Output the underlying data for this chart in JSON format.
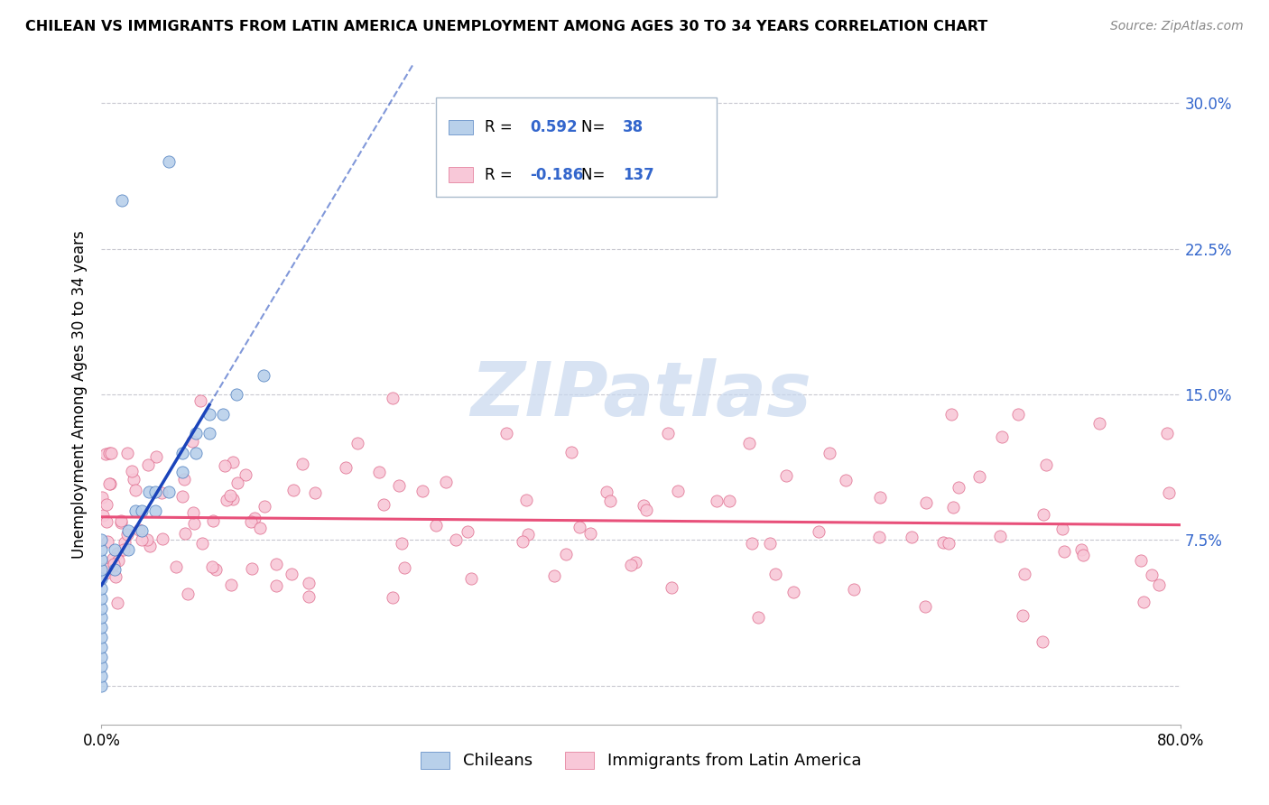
{
  "title": "CHILEAN VS IMMIGRANTS FROM LATIN AMERICA UNEMPLOYMENT AMONG AGES 30 TO 34 YEARS CORRELATION CHART",
  "source": "Source: ZipAtlas.com",
  "ylabel": "Unemployment Among Ages 30 to 34 years",
  "xlim": [
    0.0,
    0.8
  ],
  "ylim": [
    -0.02,
    0.32
  ],
  "yticks": [
    0.0,
    0.075,
    0.15,
    0.225,
    0.3
  ],
  "ytick_labels": [
    "",
    "7.5%",
    "15.0%",
    "22.5%",
    "30.0%"
  ],
  "xtick_labels": [
    "0.0%",
    "80.0%"
  ],
  "grid_color": "#c8c8d0",
  "background_color": "#ffffff",
  "chilean_fill_color": "#b8d0ea",
  "chilean_edge_color": "#5080c0",
  "immigrant_fill_color": "#f8c8d8",
  "immigrant_edge_color": "#e07090",
  "chilean_line_color": "#1a44bb",
  "immigrant_line_color": "#e8507a",
  "R_chilean": 0.592,
  "N_chilean": 38,
  "R_immigrant": -0.186,
  "N_immigrant": 137,
  "tick_label_color": "#3366cc",
  "watermark_color": "#c8d8ee",
  "title_fontsize": 11.5,
  "source_fontsize": 10,
  "tick_fontsize": 12,
  "ylabel_fontsize": 12
}
